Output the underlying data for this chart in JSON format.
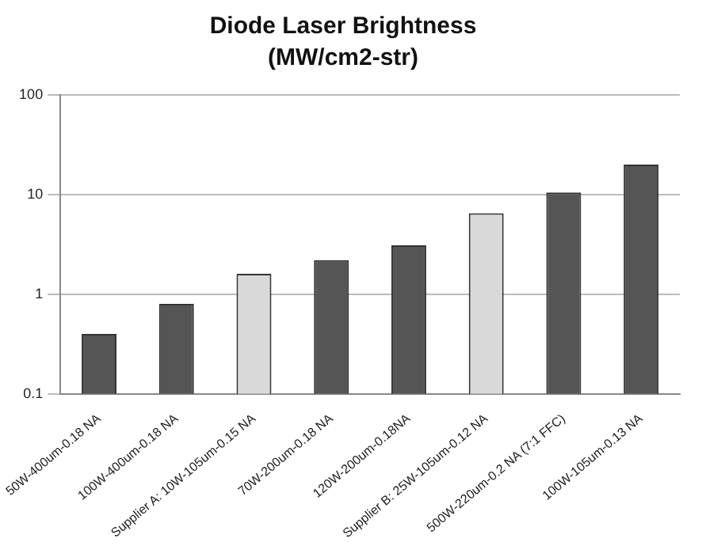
{
  "chart_data": {
    "type": "bar",
    "title": "Diode Laser Brightness",
    "subtitle": "(MW/cm2-str)",
    "categories": [
      "50W-400um-0.18 NA",
      "100W-400um-0.18 NA",
      "Supplier A: 10W-105um-0.15 NA",
      "70W-200um-0.18 NA",
      "120W-200um-0.18NA",
      "Supplier B: 25W-105um-0.12 NA",
      "500W-220um-0.2 NA (7:1 FFC)",
      "100W-105um-0.13 NA"
    ],
    "values": [
      0.4,
      0.8,
      1.6,
      2.2,
      3.1,
      6.5,
      10.5,
      20
    ],
    "colors": [
      "#555555",
      "#555555",
      "#d9d9d9",
      "#555555",
      "#555555",
      "#d9d9d9",
      "#555555",
      "#555555"
    ],
    "log": "y",
    "ylim": [
      0.1,
      100
    ],
    "yticks": [
      0.1,
      1,
      10,
      100
    ],
    "grid": "y"
  }
}
